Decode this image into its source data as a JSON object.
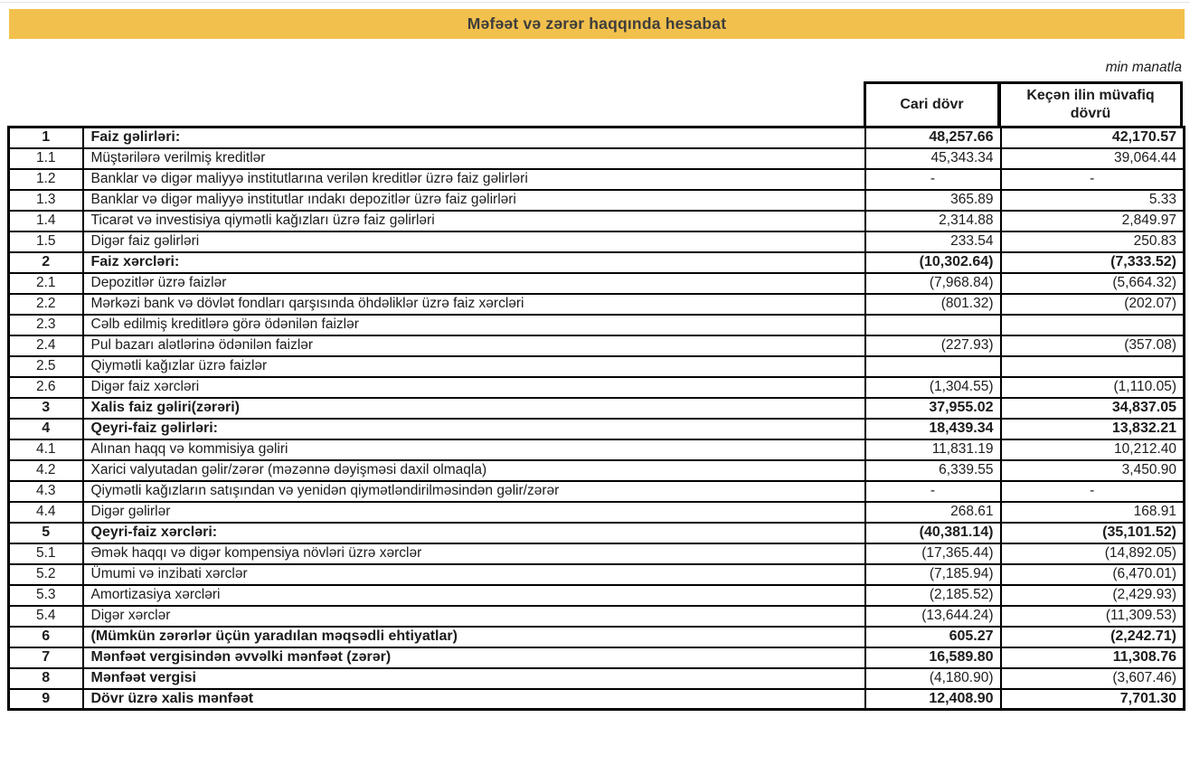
{
  "page": {
    "title": "Məfəət və zərər haqqında hesabat",
    "unit_note": "min manatla"
  },
  "colors": {
    "title_bar_background": "#F2C04C",
    "title_text": "#3d3d3d",
    "table_border": "#000000"
  },
  "table": {
    "columns": {
      "current": "Cari dövr",
      "previous": "Keçən ilin müvafiq dövrü"
    },
    "rows": [
      {
        "num": "1",
        "label": "Faiz gəlirləri:",
        "current": "48,257.66",
        "previous": "42,170.57",
        "bold": true
      },
      {
        "num": "1.1",
        "label": "Müştərilərə verilmiş kreditlər",
        "current": "45,343.34",
        "previous": "39,064.44",
        "bold": false
      },
      {
        "num": "1.2",
        "label": "Banklar və digər maliyyə institutlarına verilən kreditlər üzrə faiz gəlirləri",
        "current": "-",
        "previous": "-",
        "bold": false
      },
      {
        "num": "1.3",
        "label": "Banklar və digər maliyyə institutlar ındakı depozitlər üzrə faiz gəlirləri",
        "current": "365.89",
        "previous": "5.33",
        "bold": false
      },
      {
        "num": "1.4",
        "label": "Ticarət və investisiya qiymətli kağızları üzrə faiz gəlirləri",
        "current": "2,314.88",
        "previous": "2,849.97",
        "bold": false
      },
      {
        "num": "1.5",
        "label": "Digər faiz gəlirləri",
        "current": "233.54",
        "previous": "250.83",
        "bold": false
      },
      {
        "num": "2",
        "label": "Faiz xərcləri:",
        "current": "(10,302.64)",
        "previous": "(7,333.52)",
        "bold": true
      },
      {
        "num": "2.1",
        "label": "Depozitlər üzrə faizlər",
        "current": "(7,968.84)",
        "previous": "(5,664.32)",
        "bold": false
      },
      {
        "num": "2.2",
        "label": "Mərkəzi bank və dövlət fondları qarşısında öhdəliklər üzrə faiz xərcləri",
        "current": "(801.32)",
        "previous": "(202.07)",
        "bold": false
      },
      {
        "num": "2.3",
        "label": "Cəlb edilmiş kreditlərə görə ödənilən faizlər",
        "current": "",
        "previous": "",
        "bold": false
      },
      {
        "num": "2.4",
        "label": "Pul bazarı alətlərinə ödənilən faizlər",
        "current": "(227.93)",
        "previous": "(357.08)",
        "bold": false
      },
      {
        "num": "2.5",
        "label": "Qiymətli kağızlar üzrə faizlər",
        "current": "",
        "previous": "",
        "bold": false
      },
      {
        "num": "2.6",
        "label": "Digər faiz xərcləri",
        "current": "(1,304.55)",
        "previous": "(1,110.05)",
        "bold": false
      },
      {
        "num": "3",
        "label": "Xalis faiz gəliri(zərəri)",
        "current": "37,955.02",
        "previous": "34,837.05",
        "bold": true
      },
      {
        "num": "4",
        "label": "Qeyri-faiz gəlirləri:",
        "current": "18,439.34",
        "previous": "13,832.21",
        "bold": true
      },
      {
        "num": "4.1",
        "label": "Alınan haqq və kommisiya gəliri",
        "current": "11,831.19",
        "previous": "10,212.40",
        "bold": false
      },
      {
        "num": "4.2",
        "label": "Xarici valyutadan gəlir/zərər (məzənnə dəyişməsi daxil olmaqla)",
        "current": "6,339.55",
        "previous": "3,450.90",
        "bold": false
      },
      {
        "num": "4.3",
        "label": "Qiymətli kağızların satışından və yenidən qiymətləndirilməsindən gəlir/zərər",
        "current": "-",
        "previous": "-",
        "bold": false
      },
      {
        "num": "4.4",
        "label": "Digər gəlirlər",
        "current": "268.61",
        "previous": "168.91",
        "bold": false
      },
      {
        "num": "5",
        "label": "Qeyri-faiz xərcləri:",
        "current": "(40,381.14)",
        "previous": "(35,101.52)",
        "bold": true
      },
      {
        "num": "5.1",
        "label": "Əmək haqqı və digər kompensiya növləri üzrə xərclər",
        "current": "(17,365.44)",
        "previous": "(14,892.05)",
        "bold": false
      },
      {
        "num": "5.2",
        "label": "Ümumi və inzibati xərclər",
        "current": "(7,185.94)",
        "previous": "(6,470.01)",
        "bold": false
      },
      {
        "num": "5.3",
        "label": "Amortizasiya xərcləri",
        "current": "(2,185.52)",
        "previous": "(2,429.93)",
        "bold": false
      },
      {
        "num": "5.4",
        "label": "Digər xərclər",
        "current": "(13,644.24)",
        "previous": "(11,309.53)",
        "bold": false
      },
      {
        "num": "6",
        "label": "(Mümkün zərərlər üçün yaradılan məqsədli ehtiyatlar)",
        "current": "605.27",
        "previous": "(2,242.71)",
        "bold": true
      },
      {
        "num": "7",
        "label": "Mənfəət vergisindən əvvəlki mənfəət (zərər)",
        "current": "16,589.80",
        "previous": "11,308.76",
        "bold": true
      },
      {
        "num": "8",
        "label": "Mənfəət vergisi",
        "current": "(4,180.90)",
        "previous": "(3,607.46)",
        "bold": true,
        "bold_values": false
      },
      {
        "num": "9",
        "label": "Dövr üzrə xalis mənfəət",
        "current": "12,408.90",
        "previous": "7,701.30",
        "bold": true
      }
    ]
  }
}
